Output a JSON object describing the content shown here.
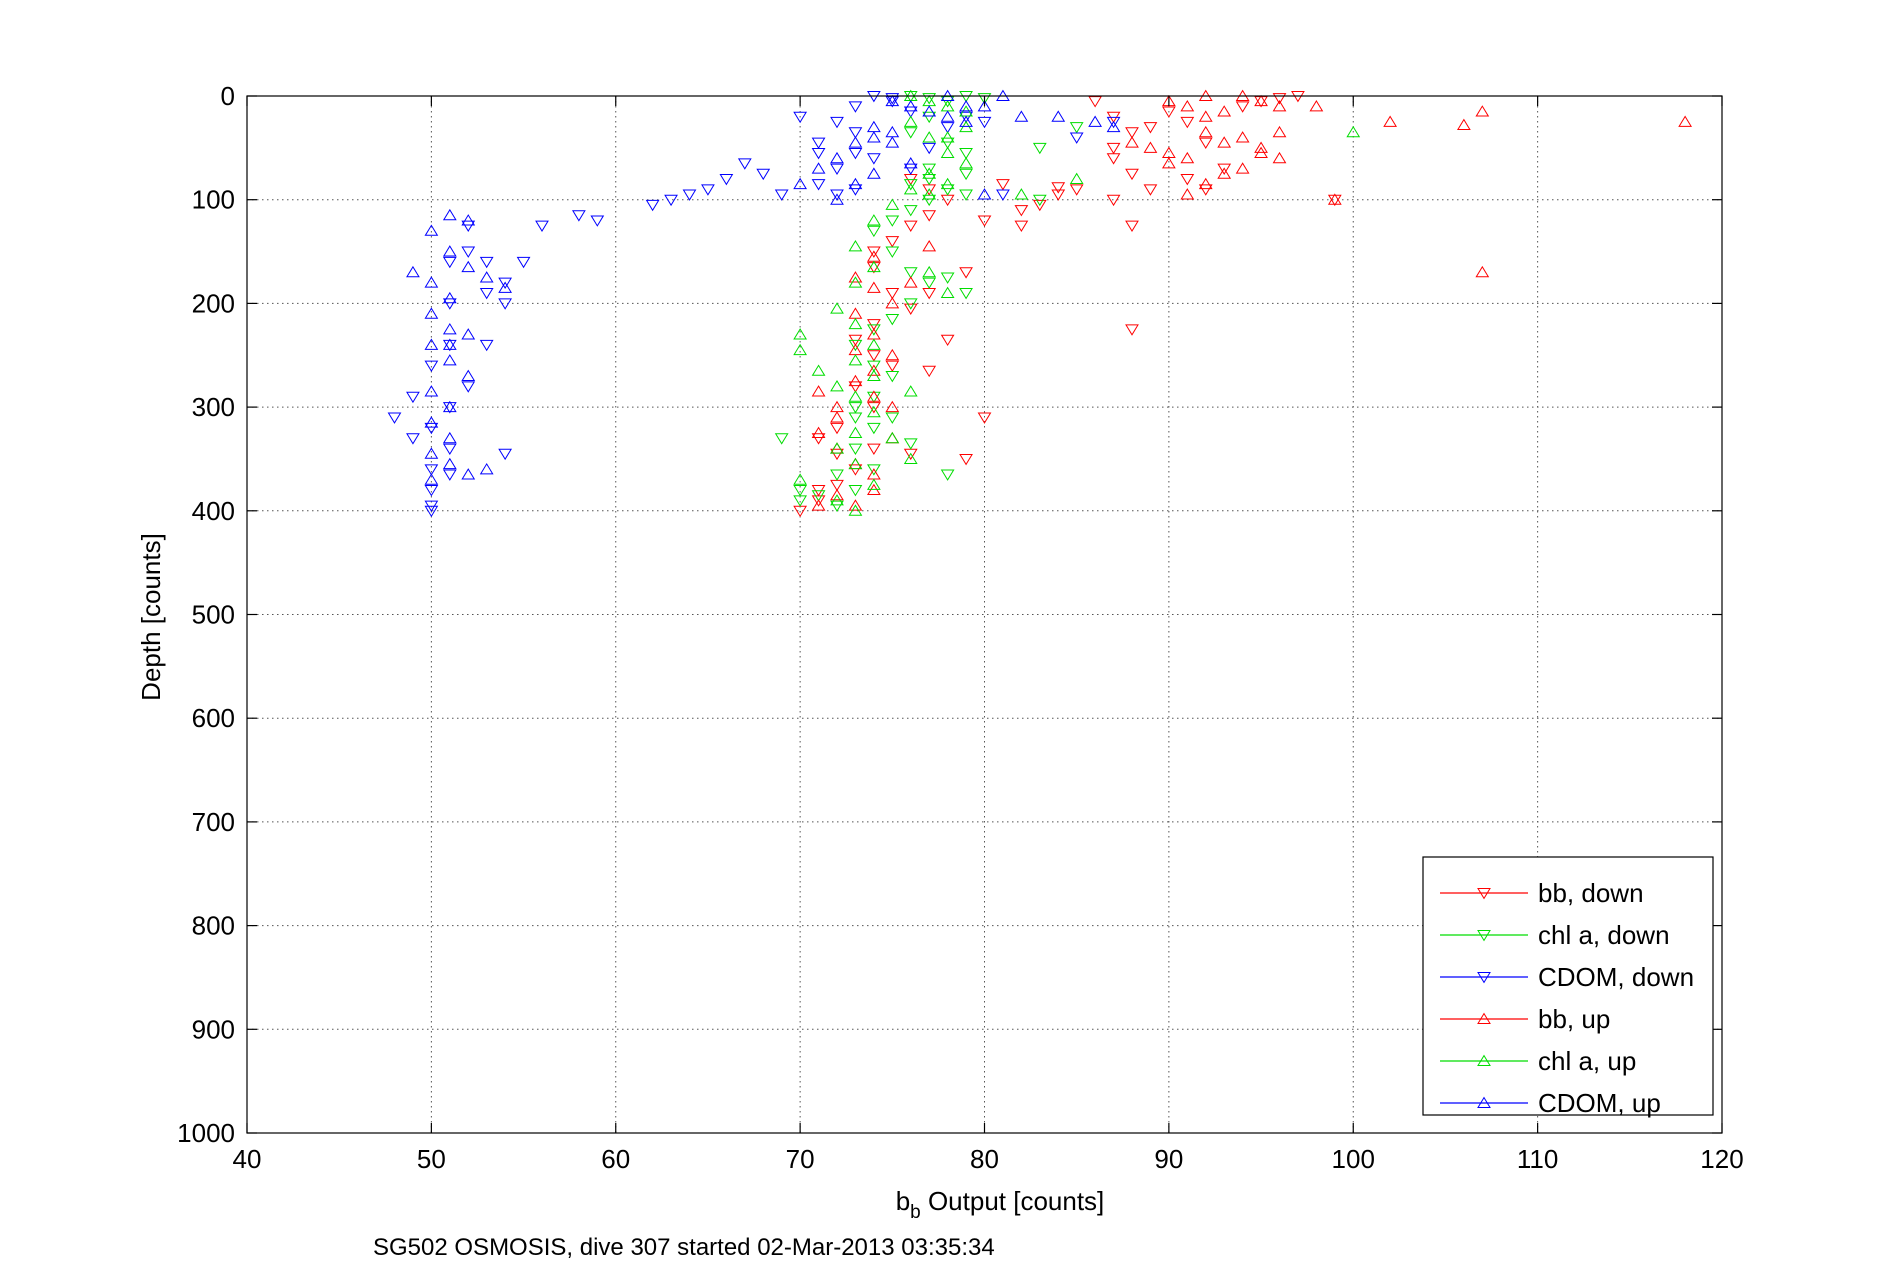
{
  "chart_data": {
    "type": "scatter",
    "title": "",
    "xlabel_main": "b",
    "xlabel_sub": "b",
    "xlabel_rest": " Output [counts]",
    "ylabel": "Depth [counts]",
    "caption": "SG502 OSMOSIS, dive 307 started 02-Mar-2013 03:35:34",
    "xlim": [
      40,
      120
    ],
    "ylim": [
      0,
      1000
    ],
    "y_reversed": true,
    "grid": true,
    "legend_position": "bottom-right",
    "x_ticks": [
      "40",
      "50",
      "60",
      "70",
      "80",
      "90",
      "100",
      "110",
      "120"
    ],
    "y_ticks": [
      "0",
      "100",
      "200",
      "300",
      "400",
      "500",
      "600",
      "700",
      "800",
      "900",
      "1000"
    ],
    "series": [
      {
        "name": "bb, down",
        "color": "#ff0000",
        "marker": "down",
        "points": [
          [
            86,
            5
          ],
          [
            87,
            20
          ],
          [
            88,
            35
          ],
          [
            87,
            50
          ],
          [
            87,
            60
          ],
          [
            88,
            75
          ],
          [
            89,
            90
          ],
          [
            91,
            80
          ],
          [
            92,
            90
          ],
          [
            93,
            70
          ],
          [
            95,
            5
          ],
          [
            96,
            2
          ],
          [
            97,
            0
          ],
          [
            94,
            10
          ],
          [
            90,
            15
          ],
          [
            89,
            30
          ],
          [
            91,
            25
          ],
          [
            92,
            45
          ],
          [
            88,
            125
          ],
          [
            88,
            225
          ],
          [
            87,
            100
          ],
          [
            85,
            90
          ],
          [
            84,
            95
          ],
          [
            84,
            88
          ],
          [
            83,
            105
          ],
          [
            82,
            110
          ],
          [
            82,
            125
          ],
          [
            80,
            120
          ],
          [
            81,
            85
          ],
          [
            79,
            170
          ],
          [
            78,
            235
          ],
          [
            79,
            350
          ],
          [
            80,
            310
          ],
          [
            99,
            100
          ],
          [
            74,
            150
          ],
          [
            74,
            165
          ],
          [
            75,
            190
          ],
          [
            76,
            205
          ],
          [
            74,
            220
          ],
          [
            73,
            235
          ],
          [
            74,
            250
          ],
          [
            75,
            260
          ],
          [
            73,
            280
          ],
          [
            74,
            300
          ],
          [
            72,
            320
          ],
          [
            71,
            330
          ],
          [
            72,
            345
          ],
          [
            73,
            360
          ],
          [
            71,
            380
          ],
          [
            70,
            400
          ],
          [
            71,
            390
          ],
          [
            72,
            375
          ],
          [
            74,
            340
          ],
          [
            76,
            345
          ],
          [
            77,
            265
          ],
          [
            77,
            190
          ],
          [
            75,
            140
          ],
          [
            76,
            125
          ],
          [
            77,
            115
          ],
          [
            78,
            100
          ],
          [
            77,
            90
          ],
          [
            76,
            80
          ]
        ]
      },
      {
        "name": "chl a, down",
        "color": "#00dd00",
        "marker": "down",
        "points": [
          [
            76,
            0
          ],
          [
            77,
            2
          ],
          [
            78,
            5
          ],
          [
            79,
            0
          ],
          [
            80,
            2
          ],
          [
            77,
            20
          ],
          [
            76,
            35
          ],
          [
            78,
            45
          ],
          [
            79,
            55
          ],
          [
            77,
            70
          ],
          [
            76,
            85
          ],
          [
            78,
            90
          ],
          [
            79,
            95
          ],
          [
            77,
            100
          ],
          [
            76,
            110
          ],
          [
            75,
            120
          ],
          [
            74,
            130
          ],
          [
            75,
            150
          ],
          [
            76,
            170
          ],
          [
            77,
            180
          ],
          [
            79,
            190
          ],
          [
            78,
            175
          ],
          [
            76,
            200
          ],
          [
            75,
            215
          ],
          [
            74,
            225
          ],
          [
            73,
            240
          ],
          [
            74,
            260
          ],
          [
            75,
            270
          ],
          [
            74,
            290
          ],
          [
            73,
            310
          ],
          [
            74,
            320
          ],
          [
            73,
            340
          ],
          [
            74,
            360
          ],
          [
            73,
            380
          ],
          [
            72,
            395
          ],
          [
            71,
            385
          ],
          [
            70,
            390
          ],
          [
            69,
            330
          ],
          [
            70,
            380
          ],
          [
            72,
            365
          ],
          [
            73,
            300
          ],
          [
            75,
            310
          ],
          [
            76,
            335
          ],
          [
            78,
            365
          ],
          [
            83,
            50
          ],
          [
            83,
            100
          ],
          [
            85,
            30
          ],
          [
            77,
            80
          ],
          [
            79,
            75
          ]
        ]
      },
      {
        "name": "CDOM, down",
        "color": "#0000ff",
        "marker": "down",
        "points": [
          [
            74,
            0
          ],
          [
            75,
            2
          ],
          [
            73,
            10
          ],
          [
            72,
            25
          ],
          [
            70,
            20
          ],
          [
            71,
            45
          ],
          [
            73,
            55
          ],
          [
            72,
            70
          ],
          [
            71,
            85
          ],
          [
            73,
            90
          ],
          [
            74,
            60
          ],
          [
            76,
            70
          ],
          [
            77,
            50
          ],
          [
            78,
            30
          ],
          [
            76,
            15
          ],
          [
            75,
            5
          ],
          [
            79,
            20
          ],
          [
            80,
            25
          ],
          [
            69,
            95
          ],
          [
            68,
            75
          ],
          [
            67,
            65
          ],
          [
            66,
            80
          ],
          [
            65,
            90
          ],
          [
            64,
            95
          ],
          [
            63,
            100
          ],
          [
            62,
            105
          ],
          [
            59,
            120
          ],
          [
            58,
            115
          ],
          [
            56,
            125
          ],
          [
            55,
            160
          ],
          [
            54,
            180
          ],
          [
            54,
            200
          ],
          [
            53,
            190
          ],
          [
            53,
            160
          ],
          [
            52,
            150
          ],
          [
            52,
            125
          ],
          [
            51,
            160
          ],
          [
            51,
            200
          ],
          [
            51,
            240
          ],
          [
            50,
            260
          ],
          [
            51,
            300
          ],
          [
            50,
            320
          ],
          [
            51,
            340
          ],
          [
            50,
            360
          ],
          [
            50,
            380
          ],
          [
            50,
            395
          ],
          [
            50,
            400
          ],
          [
            49,
            330
          ],
          [
            48,
            310
          ],
          [
            49,
            290
          ],
          [
            53,
            240
          ],
          [
            52,
            280
          ],
          [
            51,
            365
          ],
          [
            54,
            345
          ],
          [
            73,
            35
          ],
          [
            71,
            55
          ],
          [
            72,
            95
          ],
          [
            87,
            25
          ],
          [
            85,
            40
          ],
          [
            81,
            95
          ]
        ]
      },
      {
        "name": "bb, up",
        "color": "#ff0000",
        "marker": "up",
        "points": [
          [
            90,
            5
          ],
          [
            91,
            10
          ],
          [
            92,
            0
          ],
          [
            93,
            15
          ],
          [
            94,
            0
          ],
          [
            95,
            5
          ],
          [
            96,
            10
          ],
          [
            98,
            10
          ],
          [
            99,
            100
          ],
          [
            102,
            25
          ],
          [
            106,
            28
          ],
          [
            107,
            15
          ],
          [
            107,
            170
          ],
          [
            118,
            25
          ],
          [
            95,
            50
          ],
          [
            96,
            60
          ],
          [
            94,
            70
          ],
          [
            93,
            75
          ],
          [
            92,
            85
          ],
          [
            91,
            60
          ],
          [
            90,
            55
          ],
          [
            89,
            50
          ],
          [
            88,
            45
          ],
          [
            92,
            35
          ],
          [
            93,
            45
          ],
          [
            96,
            35
          ],
          [
            95,
            55
          ],
          [
            94,
            40
          ],
          [
            92,
            20
          ],
          [
            90,
            65
          ],
          [
            91,
            95
          ],
          [
            74,
            155
          ],
          [
            73,
            175
          ],
          [
            74,
            185
          ],
          [
            75,
            200
          ],
          [
            73,
            210
          ],
          [
            74,
            230
          ],
          [
            73,
            245
          ],
          [
            74,
            265
          ],
          [
            75,
            250
          ],
          [
            73,
            275
          ],
          [
            74,
            290
          ],
          [
            72,
            310
          ],
          [
            71,
            325
          ],
          [
            72,
            340
          ],
          [
            73,
            355
          ],
          [
            74,
            365
          ],
          [
            72,
            385
          ],
          [
            71,
            395
          ],
          [
            74,
            380
          ],
          [
            73,
            395
          ],
          [
            77,
            145
          ],
          [
            76,
            180
          ],
          [
            75,
            300
          ],
          [
            75,
            330
          ],
          [
            72,
            300
          ],
          [
            71,
            285
          ]
        ]
      },
      {
        "name": "chl a, up",
        "color": "#00dd00",
        "marker": "up",
        "points": [
          [
            76,
            0
          ],
          [
            77,
            5
          ],
          [
            78,
            10
          ],
          [
            79,
            15
          ],
          [
            76,
            25
          ],
          [
            77,
            40
          ],
          [
            78,
            55
          ],
          [
            79,
            65
          ],
          [
            77,
            75
          ],
          [
            76,
            90
          ],
          [
            75,
            105
          ],
          [
            74,
            120
          ],
          [
            73,
            145
          ],
          [
            74,
            165
          ],
          [
            73,
            180
          ],
          [
            72,
            205
          ],
          [
            73,
            220
          ],
          [
            74,
            240
          ],
          [
            73,
            255
          ],
          [
            74,
            270
          ],
          [
            73,
            290
          ],
          [
            74,
            305
          ],
          [
            73,
            325
          ],
          [
            72,
            340
          ],
          [
            73,
            355
          ],
          [
            74,
            375
          ],
          [
            72,
            390
          ],
          [
            73,
            400
          ],
          [
            70,
            230
          ],
          [
            70,
            245
          ],
          [
            71,
            265
          ],
          [
            72,
            280
          ],
          [
            70,
            370
          ],
          [
            76,
            285
          ],
          [
            75,
            330
          ],
          [
            76,
            350
          ],
          [
            77,
            170
          ],
          [
            78,
            190
          ],
          [
            100,
            35
          ],
          [
            85,
            80
          ],
          [
            82,
            95
          ],
          [
            78,
            40
          ],
          [
            79,
            30
          ],
          [
            78,
            85
          ],
          [
            77,
            95
          ]
        ]
      },
      {
        "name": "CDOM, up",
        "color": "#0000ff",
        "marker": "up",
        "points": [
          [
            75,
            5
          ],
          [
            76,
            10
          ],
          [
            77,
            15
          ],
          [
            78,
            20
          ],
          [
            79,
            25
          ],
          [
            80,
            10
          ],
          [
            81,
            0
          ],
          [
            82,
            20
          ],
          [
            84,
            20
          ],
          [
            74,
            30
          ],
          [
            73,
            45
          ],
          [
            72,
            60
          ],
          [
            71,
            70
          ],
          [
            70,
            85
          ],
          [
            72,
            100
          ],
          [
            75,
            45
          ],
          [
            76,
            65
          ],
          [
            74,
            75
          ],
          [
            73,
            85
          ],
          [
            51,
            115
          ],
          [
            52,
            120
          ],
          [
            50,
            130
          ],
          [
            51,
            150
          ],
          [
            52,
            165
          ],
          [
            50,
            180
          ],
          [
            51,
            195
          ],
          [
            50,
            210
          ],
          [
            51,
            225
          ],
          [
            50,
            240
          ],
          [
            51,
            255
          ],
          [
            52,
            270
          ],
          [
            50,
            285
          ],
          [
            51,
            300
          ],
          [
            50,
            315
          ],
          [
            51,
            330
          ],
          [
            50,
            345
          ],
          [
            51,
            355
          ],
          [
            52,
            365
          ],
          [
            53,
            360
          ],
          [
            50,
            370
          ],
          [
            49,
            170
          ],
          [
            51,
            240
          ],
          [
            52,
            230
          ],
          [
            53,
            175
          ],
          [
            54,
            185
          ],
          [
            74,
            40
          ],
          [
            75,
            35
          ],
          [
            86,
            25
          ],
          [
            87,
            30
          ],
          [
            80,
            95
          ],
          [
            79,
            10
          ],
          [
            78,
            0
          ]
        ]
      }
    ]
  }
}
